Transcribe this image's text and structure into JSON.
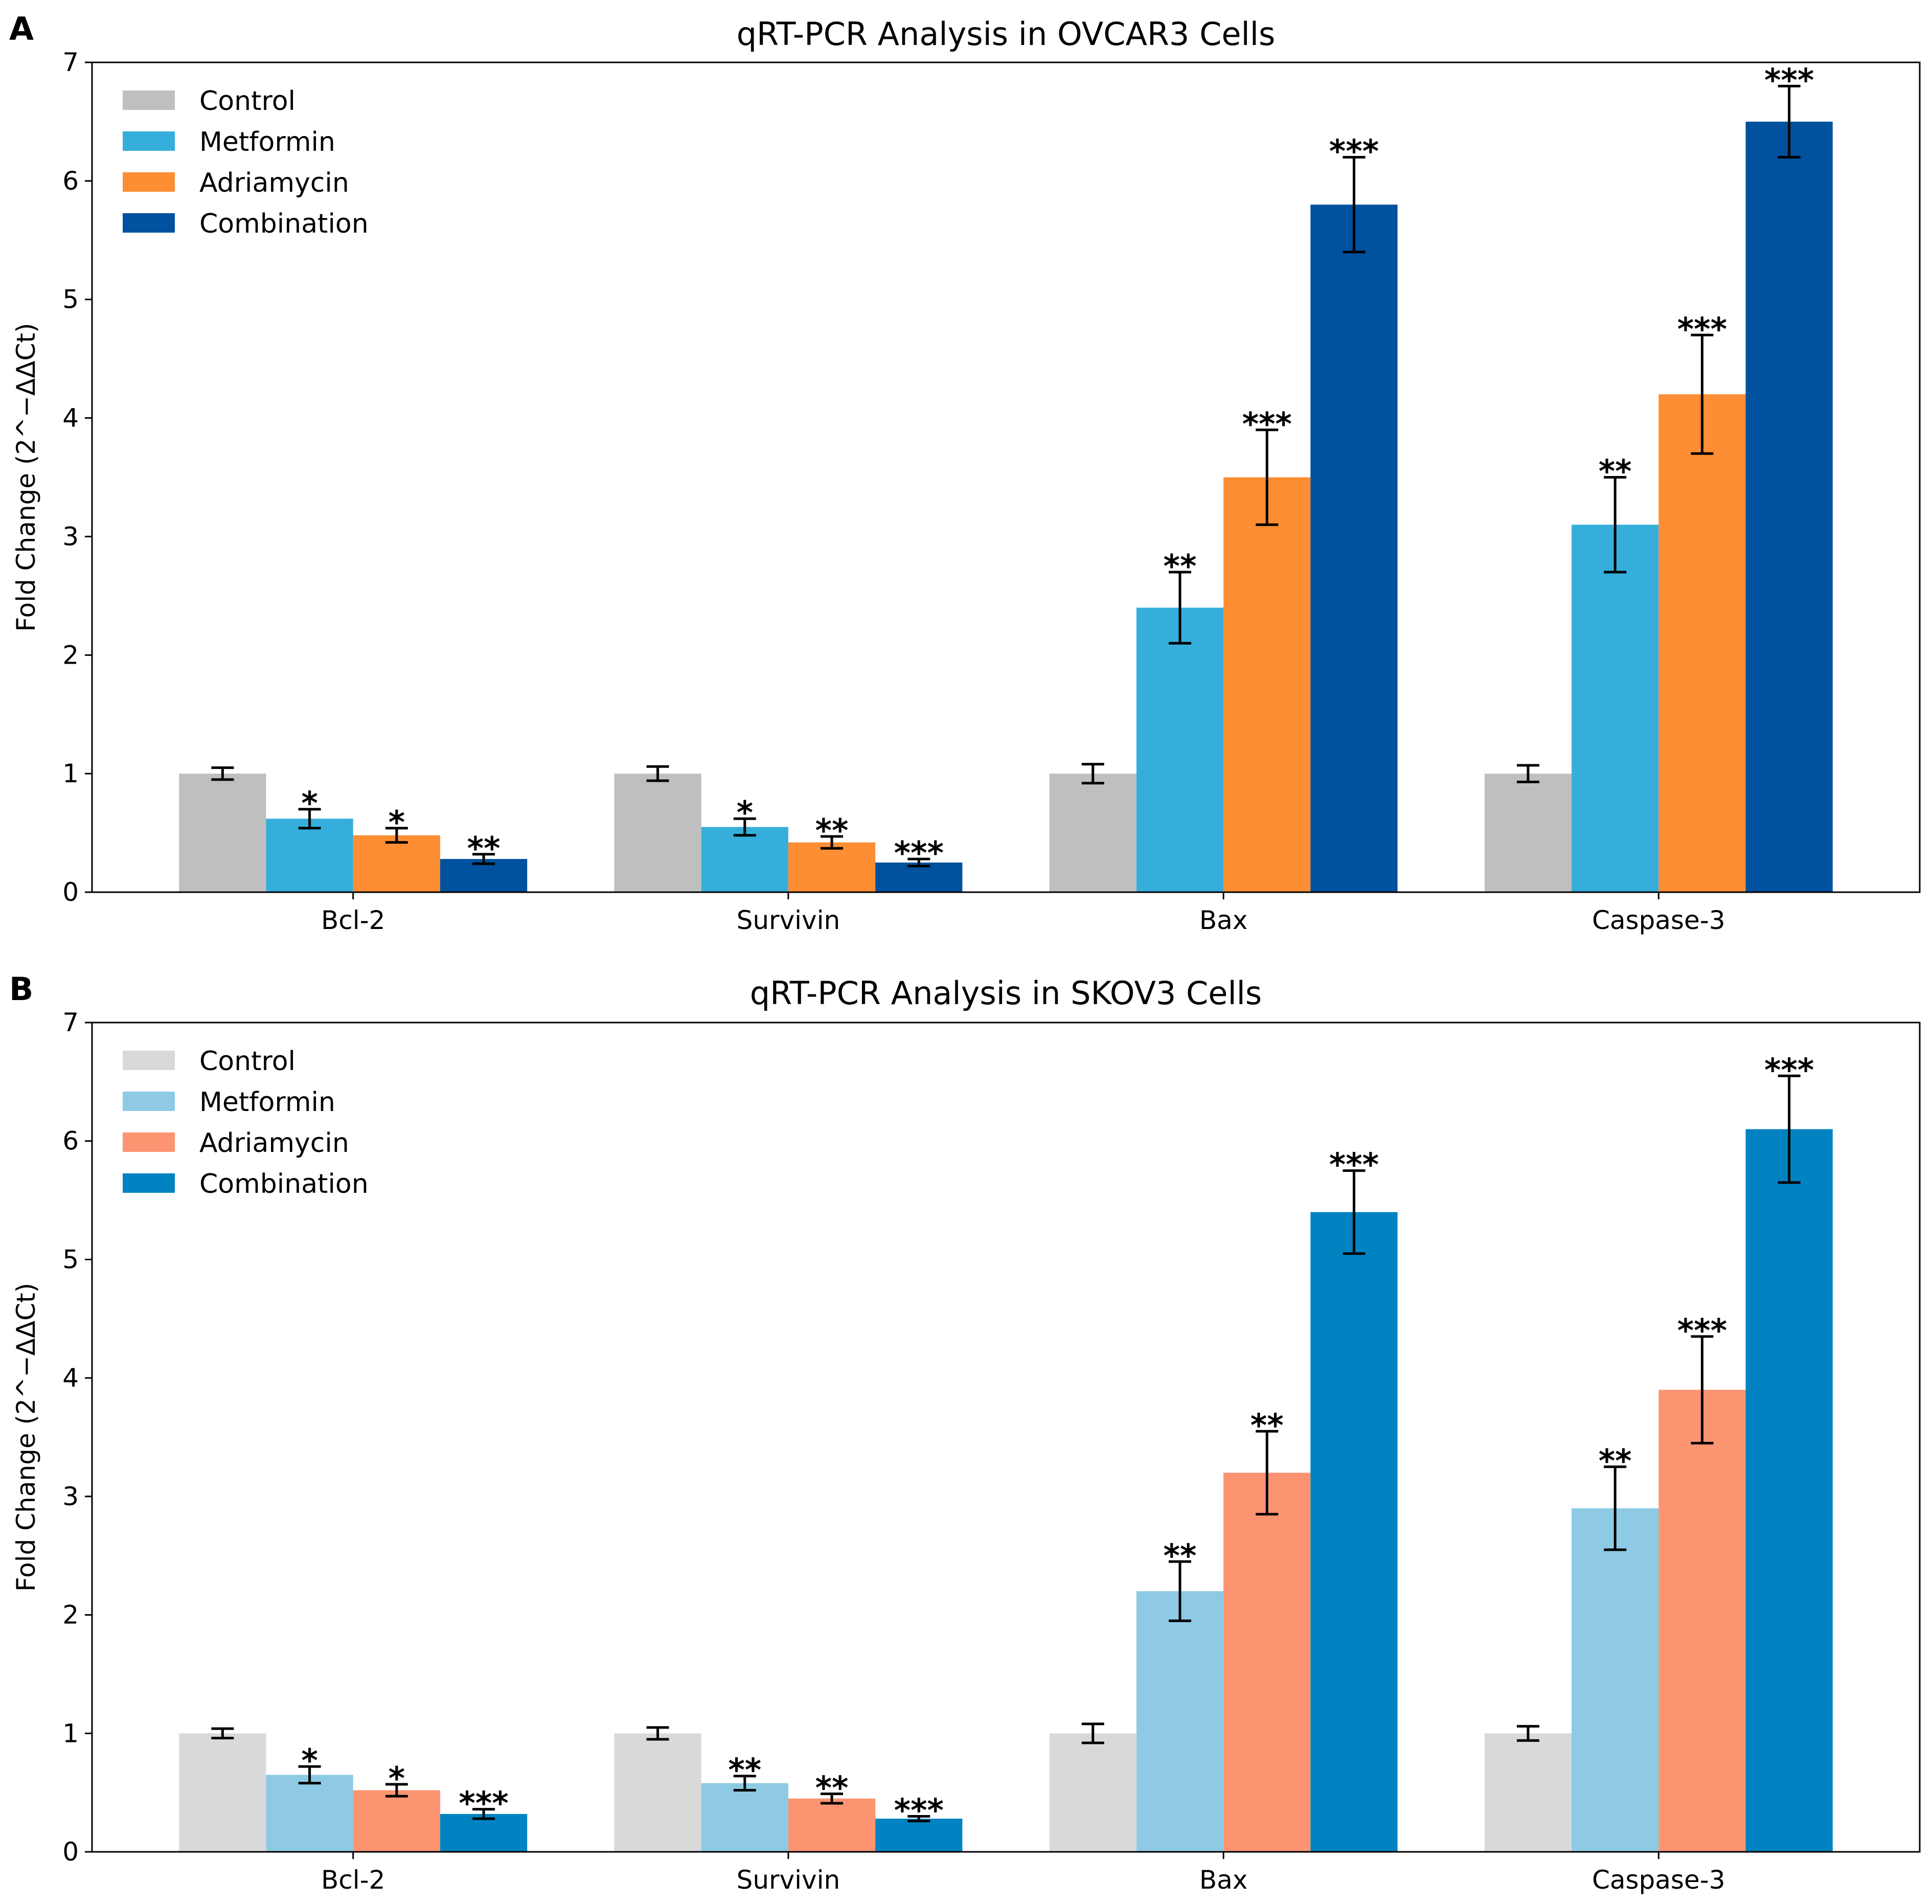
{
  "chart_data": [
    {
      "type": "bar",
      "panel": "A",
      "title": "qRT-PCR Analysis in OVCAR3 Cells",
      "xlabel": "",
      "ylabel": "Fold Change (2^−ΔΔCt)",
      "ylim": [
        0,
        7
      ],
      "yticks": [
        "0",
        "1",
        "2",
        "3",
        "4",
        "5",
        "6",
        "7"
      ],
      "categories": [
        "Bcl-2",
        "Survivin",
        "Bax",
        "Caspase-3"
      ],
      "legend_position": "top-left",
      "series": [
        {
          "name": "Control",
          "color": "#bfbfbf",
          "values": [
            1.0,
            1.0,
            1.0,
            1.0
          ],
          "errors": [
            0.05,
            0.06,
            0.08,
            0.07
          ],
          "sig": [
            "",
            "",
            "",
            ""
          ]
        },
        {
          "name": "Metformin",
          "color": "#36aedb",
          "values": [
            0.62,
            0.55,
            2.4,
            3.1
          ],
          "errors": [
            0.08,
            0.07,
            0.3,
            0.4
          ],
          "sig": [
            "*",
            "*",
            "**",
            "**"
          ]
        },
        {
          "name": "Adriamycin",
          "color": "#fd8e33",
          "values": [
            0.48,
            0.42,
            3.5,
            4.2
          ],
          "errors": [
            0.06,
            0.05,
            0.4,
            0.5
          ],
          "sig": [
            "*",
            "**",
            "***",
            "***"
          ]
        },
        {
          "name": "Combination",
          "color": "#00519e",
          "values": [
            0.28,
            0.25,
            5.8,
            6.5
          ],
          "errors": [
            0.04,
            0.03,
            0.4,
            0.3
          ],
          "sig": [
            "**",
            "***",
            "***",
            "***"
          ]
        }
      ]
    },
    {
      "type": "bar",
      "panel": "B",
      "title": "qRT-PCR Analysis in SKOV3 Cells",
      "xlabel": "",
      "ylabel": "Fold Change (2^−ΔΔCt)",
      "ylim": [
        0,
        7
      ],
      "yticks": [
        "0",
        "1",
        "2",
        "3",
        "4",
        "5",
        "6",
        "7"
      ],
      "categories": [
        "Bcl-2",
        "Survivin",
        "Bax",
        "Caspase-3"
      ],
      "legend_position": "top-left",
      "series": [
        {
          "name": "Control",
          "color": "#d9d9d9",
          "values": [
            1.0,
            1.0,
            1.0,
            1.0
          ],
          "errors": [
            0.04,
            0.05,
            0.08,
            0.06
          ],
          "sig": [
            "",
            "",
            "",
            ""
          ]
        },
        {
          "name": "Metformin",
          "color": "#8ecae4",
          "values": [
            0.65,
            0.58,
            2.2,
            2.9
          ],
          "errors": [
            0.07,
            0.06,
            0.25,
            0.35
          ],
          "sig": [
            "*",
            "**",
            "**",
            "**"
          ]
        },
        {
          "name": "Adriamycin",
          "color": "#fc9471",
          "values": [
            0.52,
            0.45,
            3.2,
            3.9
          ],
          "errors": [
            0.05,
            0.04,
            0.35,
            0.45
          ],
          "sig": [
            "*",
            "**",
            "**",
            "***"
          ]
        },
        {
          "name": "Combination",
          "color": "#0283c1",
          "values": [
            0.32,
            0.28,
            5.4,
            6.1
          ],
          "errors": [
            0.04,
            0.02,
            0.35,
            0.45
          ],
          "sig": [
            "***",
            "***",
            "***",
            "***"
          ]
        }
      ]
    }
  ]
}
